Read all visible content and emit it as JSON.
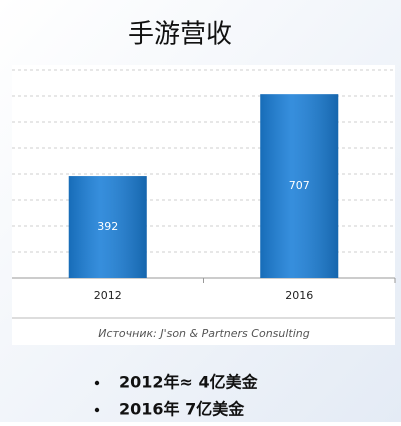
{
  "chart_data": {
    "type": "bar",
    "title": "手游营收",
    "categories": [
      "2012",
      "2016"
    ],
    "values": [
      392,
      707
    ],
    "color": "#1b7fd8",
    "ylim": [
      0,
      800
    ],
    "yticks": [
      0,
      100,
      200,
      300,
      400,
      500,
      600,
      700,
      800
    ],
    "grid": true,
    "source": "Источник: J'son & Partners Consulting",
    "bullets": [
      "2012年≈ 4亿美金",
      "2016年 7亿美金"
    ]
  }
}
